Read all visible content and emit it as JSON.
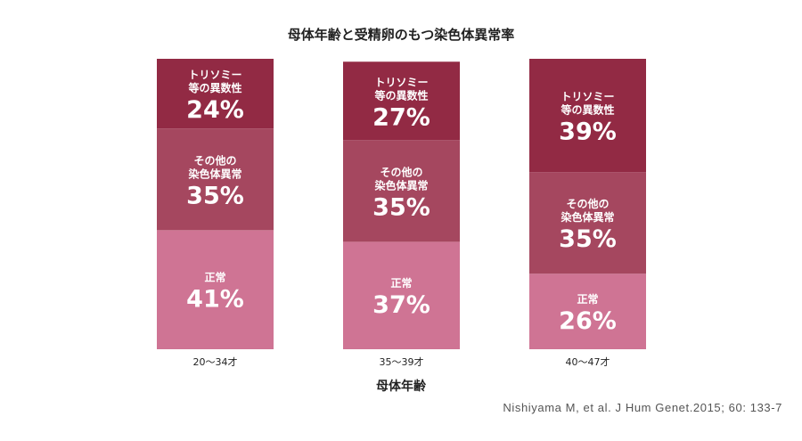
{
  "chart_data": {
    "type": "bar",
    "stacked": true,
    "title": "母体年齢と受精卵のもつ染色体異常率",
    "xlabel": "母体年齢",
    "ylabel": "",
    "categories": [
      "20〜34才",
      "35〜39才",
      "40〜47才"
    ],
    "ylim": [
      0,
      100
    ],
    "series": [
      {
        "name": "正常",
        "label_lines": [
          "正常"
        ],
        "values": [
          41,
          37,
          26
        ],
        "color": "#cf7494"
      },
      {
        "name": "その他の染色体異常",
        "label_lines": [
          "その他の",
          "染色体異常"
        ],
        "values": [
          35,
          35,
          35
        ],
        "color": "#a5475f"
      },
      {
        "name": "トリソミー等の異数性",
        "label_lines": [
          "トリソミー",
          "等の異数性"
        ],
        "values": [
          24,
          27,
          39
        ],
        "color": "#922a44"
      }
    ],
    "value_suffix": "%"
  },
  "citation": "Nishiyama M, et al. J Hum Genet.2015; 60: 133-7"
}
